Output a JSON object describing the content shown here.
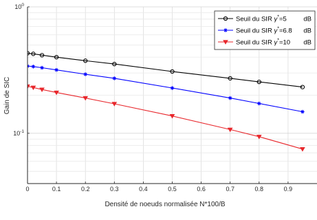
{
  "chart_data": {
    "type": "line",
    "title": "",
    "xlabel": "Densité de noeuds normalisée N*100/B",
    "ylabel": "Gain de SIC",
    "xlim": [
      0,
      1
    ],
    "ylim": [
      0.04,
      1
    ],
    "y_scale": "log",
    "grid": true,
    "legend_position": "top-right",
    "x_ticks": [
      "0",
      "0.1",
      "0.2",
      "0.3",
      "0.4",
      "0.5",
      "0.6",
      "0.7",
      "0.8",
      "0.9"
    ],
    "y_ticks": [
      {
        "base": "10",
        "exp": "0",
        "value": 1
      },
      {
        "base": "10",
        "exp": "-1",
        "value": 0.1
      }
    ],
    "series": [
      {
        "name": "Seuil du SIR γ*=5 dB",
        "legend": {
          "prefix": "Seuil du SIR ",
          "symbol": "γ",
          "sup": "*",
          "value": "=5",
          "unit": "dB"
        },
        "color": "#000000",
        "marker": "circle",
        "x": [
          0,
          0.02,
          0.05,
          0.1,
          0.2,
          0.3,
          0.5,
          0.7,
          0.8,
          0.95
        ],
        "y": [
          0.43,
          0.425,
          0.415,
          0.4,
          0.375,
          0.353,
          0.308,
          0.272,
          0.255,
          0.232
        ]
      },
      {
        "name": "Seuil du SIR γ*=6.8 dB",
        "legend": {
          "prefix": "Seuil du SIR ",
          "symbol": "γ",
          "sup": "*",
          "value": "=6.8",
          "unit": "dB"
        },
        "color": "#0000ff",
        "marker": "star",
        "x": [
          0,
          0.02,
          0.05,
          0.1,
          0.2,
          0.3,
          0.5,
          0.7,
          0.8,
          0.95
        ],
        "y": [
          0.34,
          0.337,
          0.33,
          0.317,
          0.293,
          0.272,
          0.228,
          0.19,
          0.172,
          0.148
        ]
      },
      {
        "name": "Seuil du SIR γ*=10 dB",
        "legend": {
          "prefix": "Seuil du SIR ",
          "symbol": "γ",
          "sup": "*",
          "value": "=10",
          "unit": "dB"
        },
        "color": "#e8262b",
        "marker": "triangle-down",
        "x": [
          0,
          0.02,
          0.05,
          0.1,
          0.2,
          0.3,
          0.5,
          0.7,
          0.8,
          0.95
        ],
        "y": [
          0.235,
          0.23,
          0.222,
          0.21,
          0.19,
          0.171,
          0.137,
          0.107,
          0.094,
          0.075
        ]
      }
    ]
  }
}
